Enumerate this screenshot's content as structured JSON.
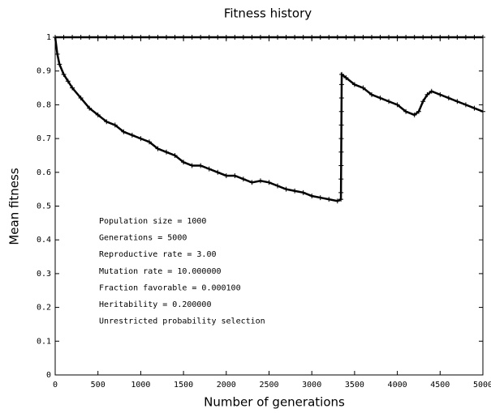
{
  "chart_data": {
    "type": "line",
    "title": "Fitness history",
    "x_label": "Number of generations",
    "y_label": "Mean fitness",
    "xlim": [
      0,
      5000
    ],
    "ylim": [
      0,
      1
    ],
    "xticks": [
      0,
      500,
      1000,
      1500,
      2000,
      2500,
      3000,
      3500,
      4000,
      4500,
      5000
    ],
    "yticks": [
      0,
      0.1,
      0.2,
      0.3,
      0.4,
      0.5,
      0.6,
      0.7,
      0.8,
      0.9,
      1
    ],
    "series": [
      {
        "color": "#000000",
        "x": [
          0,
          100,
          200,
          300,
          400,
          500,
          600,
          700,
          800,
          900,
          1000,
          1100,
          1200,
          1300,
          1400,
          1500,
          1600,
          1700,
          1800,
          1900,
          2000,
          2100,
          2200,
          2300,
          2400,
          2500,
          2600,
          2700,
          2800,
          2900,
          3000,
          3100,
          3200,
          3300,
          3400,
          3500,
          3600,
          3700,
          3800,
          3900,
          4000,
          4100,
          4200,
          4300,
          4400,
          4500,
          4600,
          4700,
          4800,
          4900,
          5000
        ],
        "values": [
          1,
          1,
          1,
          1,
          1,
          1,
          1,
          1,
          1,
          1,
          1,
          1,
          1,
          1,
          1,
          1,
          1,
          1,
          1,
          1,
          1,
          1,
          1,
          1,
          1,
          1,
          1,
          1,
          1,
          1,
          1,
          1,
          1,
          1,
          1,
          1,
          1,
          1,
          1,
          1,
          1,
          1,
          1,
          1,
          1,
          1,
          1,
          1,
          1,
          1,
          1
        ]
      },
      {
        "color": "#000000",
        "x": [
          0,
          25,
          50,
          100,
          150,
          200,
          300,
          400,
          500,
          600,
          700,
          800,
          900,
          1000,
          1100,
          1200,
          1300,
          1400,
          1500,
          1600,
          1700,
          1800,
          1900,
          2000,
          2100,
          2200,
          2300,
          2400,
          2500,
          2600,
          2700,
          2800,
          2900,
          3000,
          3100,
          3200,
          3300,
          3340,
          3341,
          3342,
          3343,
          3344,
          3345,
          3346,
          3347,
          3348,
          3349,
          3350,
          3400,
          3500,
          3600,
          3700,
          3800,
          3900,
          4000,
          4100,
          4200,
          4250,
          4300,
          4350,
          4400,
          4500,
          4600,
          4700,
          4800,
          4900,
          5000
        ],
        "values": [
          1,
          0.95,
          0.92,
          0.89,
          0.87,
          0.85,
          0.82,
          0.79,
          0.77,
          0.75,
          0.74,
          0.72,
          0.71,
          0.7,
          0.69,
          0.67,
          0.66,
          0.65,
          0.63,
          0.62,
          0.62,
          0.61,
          0.6,
          0.59,
          0.59,
          0.58,
          0.57,
          0.575,
          0.57,
          0.56,
          0.55,
          0.545,
          0.54,
          0.53,
          0.525,
          0.52,
          0.515,
          0.52,
          0.54,
          0.58,
          0.62,
          0.66,
          0.7,
          0.74,
          0.78,
          0.82,
          0.86,
          0.89,
          0.88,
          0.86,
          0.85,
          0.83,
          0.82,
          0.81,
          0.8,
          0.78,
          0.77,
          0.78,
          0.81,
          0.83,
          0.84,
          0.83,
          0.82,
          0.81,
          0.8,
          0.79,
          0.78
        ]
      }
    ],
    "annotations": [
      "Population size = 1000",
      "Generations = 5000",
      "Reproductive rate = 3.00",
      "Mutation rate = 10.000000",
      "Fraction favorable = 0.000100",
      "Heritability = 0.200000",
      "Unrestricted probability selection"
    ]
  }
}
